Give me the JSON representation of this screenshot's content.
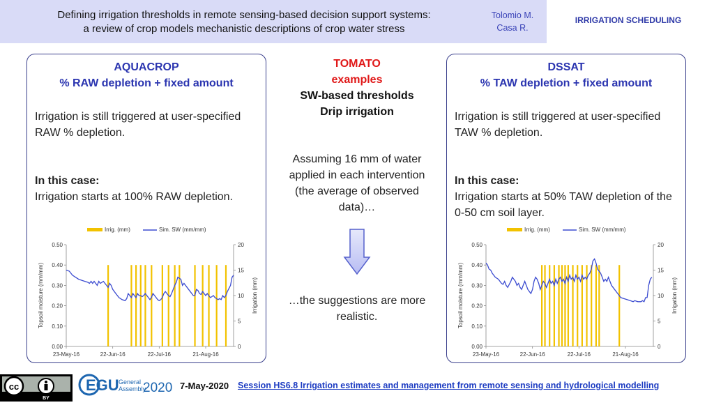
{
  "header": {
    "title_line1": "Defining irrigation thresholds in remote sensing-based decision support systems:",
    "title_line2": "a review of crop models mechanistic descriptions of crop water stress",
    "author1": "Tolomio M.",
    "author2": "Casa R.",
    "tag": "IRRIGATION SCHEDULING"
  },
  "left": {
    "title1": "AQUACROP",
    "title2": "% RAW depletion + fixed amount",
    "text1": "Irrigation is still triggered at user-specified RAW % depletion.",
    "case_label": "In this case:",
    "case_text": "Irrigation starts at 100% RAW depletion."
  },
  "right": {
    "title1": "DSSAT",
    "title2": "% TAW depletion + fixed amount",
    "text1": "Irrigation is still triggered at user-specified TAW % depletion.",
    "case_label": "In this case:",
    "case_text": "Irrigation starts at 50% TAW depletion of the 0-50 cm soil layer."
  },
  "center": {
    "crop": "TOMATO",
    "examples": "examples",
    "line1": "SW-based thresholds",
    "line2": "Drip irrigation",
    "assume": "Assuming 16 mm of water applied in each intervention (the average of observed data)…",
    "conclusion": "…the suggestions are more realistic."
  },
  "footer": {
    "cc_label": "BY",
    "egu_word1": "General",
    "egu_word2": "Assembly",
    "egu_year": "2020",
    "egu_letters": "EGU",
    "date": "7-May-2020",
    "session": "Session HS6.8   Irrigation estimates and management from remote sensing and hydrological modelling"
  },
  "colors": {
    "accent": "#2b35b0",
    "bar": "#f2c200",
    "line": "#3b4bd0",
    "red": "#e01818"
  },
  "chart_data": [
    {
      "type": "bar+line",
      "legend": [
        "Irrig. (mm)",
        "Sim. SW (mm/mm)"
      ],
      "ylabel": "Topsoil moisture (mm/mm)",
      "y2label": "Irrigation (mm)",
      "ylim": [
        0,
        0.5
      ],
      "y2lim": [
        0,
        20
      ],
      "yticks": [
        "0.00",
        "0.10",
        "0.20",
        "0.30",
        "0.40",
        "0.50"
      ],
      "y2ticks": [
        "0",
        "5",
        "10",
        "15",
        "20"
      ],
      "xrange_days": [
        "2016-05-23",
        "2016-09-08"
      ],
      "xticks": [
        "23-May-16",
        "22-Jun-16",
        "22-Jul-16",
        "21-Aug-16"
      ],
      "irrigation_dates": [
        "2016-06-19",
        "2016-07-04",
        "2016-07-07",
        "2016-07-10",
        "2016-07-13",
        "2016-07-17",
        "2016-07-24",
        "2016-07-28",
        "2016-08-01",
        "2016-08-04",
        "2016-08-14",
        "2016-08-19",
        "2016-08-23",
        "2016-08-28",
        "2016-09-03"
      ],
      "irrigation_mm": 16,
      "sw_series": [
        [
          0,
          0.375
        ],
        [
          2,
          0.37
        ],
        [
          4,
          0.35
        ],
        [
          6,
          0.34
        ],
        [
          8,
          0.33
        ],
        [
          10,
          0.325
        ],
        [
          12,
          0.32
        ],
        [
          14,
          0.315
        ],
        [
          15,
          0.31
        ],
        [
          16,
          0.32
        ],
        [
          17,
          0.31
        ],
        [
          18,
          0.32
        ],
        [
          19,
          0.31
        ],
        [
          20,
          0.3
        ],
        [
          21,
          0.32
        ],
        [
          22,
          0.31
        ],
        [
          24,
          0.32
        ],
        [
          26,
          0.3
        ],
        [
          27,
          0.29
        ],
        [
          28,
          0.31
        ],
        [
          29,
          0.3
        ],
        [
          30,
          0.28
        ],
        [
          32,
          0.26
        ],
        [
          34,
          0.24
        ],
        [
          36,
          0.23
        ],
        [
          38,
          0.225
        ],
        [
          39,
          0.235
        ],
        [
          40,
          0.26
        ],
        [
          41,
          0.25
        ],
        [
          42,
          0.24
        ],
        [
          43,
          0.26
        ],
        [
          44,
          0.25
        ],
        [
          45,
          0.24
        ],
        [
          46,
          0.26
        ],
        [
          47,
          0.25
        ],
        [
          48,
          0.25
        ],
        [
          49,
          0.245
        ],
        [
          50,
          0.25
        ],
        [
          51,
          0.26
        ],
        [
          52,
          0.25
        ],
        [
          53,
          0.24
        ],
        [
          54,
          0.23
        ],
        [
          55,
          0.24
        ],
        [
          56,
          0.26
        ],
        [
          57,
          0.25
        ],
        [
          58,
          0.24
        ],
        [
          59,
          0.23
        ],
        [
          60,
          0.225
        ],
        [
          61,
          0.23
        ],
        [
          62,
          0.24
        ],
        [
          63,
          0.26
        ],
        [
          64,
          0.27
        ],
        [
          65,
          0.26
        ],
        [
          66,
          0.25
        ],
        [
          67,
          0.245
        ],
        [
          68,
          0.26
        ],
        [
          70,
          0.3
        ],
        [
          71,
          0.315
        ],
        [
          72,
          0.34
        ],
        [
          74,
          0.33
        ],
        [
          75,
          0.3
        ],
        [
          76,
          0.31
        ],
        [
          77,
          0.3
        ],
        [
          78,
          0.29
        ],
        [
          80,
          0.27
        ],
        [
          82,
          0.25
        ],
        [
          83,
          0.25
        ],
        [
          84,
          0.28
        ],
        [
          85,
          0.275
        ],
        [
          86,
          0.26
        ],
        [
          87,
          0.255
        ],
        [
          88,
          0.27
        ],
        [
          89,
          0.26
        ],
        [
          90,
          0.25
        ],
        [
          91,
          0.26
        ],
        [
          92,
          0.25
        ],
        [
          93,
          0.24
        ],
        [
          94,
          0.245
        ],
        [
          95,
          0.25
        ],
        [
          96,
          0.24
        ],
        [
          98,
          0.23
        ],
        [
          99,
          0.235
        ],
        [
          100,
          0.23
        ],
        [
          101,
          0.25
        ],
        [
          102,
          0.24
        ],
        [
          103,
          0.25
        ],
        [
          104,
          0.27
        ],
        [
          106,
          0.3
        ],
        [
          107,
          0.34
        ],
        [
          108,
          0.35
        ]
      ]
    },
    {
      "type": "bar+line",
      "legend": [
        "Irrig. (mm)",
        "Sim. SW (mm/mm)"
      ],
      "ylabel": "Topsoil moisture (mm/mm)",
      "y2label": "Irrigation (mm)",
      "ylim": [
        0,
        0.5
      ],
      "y2lim": [
        0,
        20
      ],
      "yticks": [
        "0.00",
        "0.10",
        "0.20",
        "0.30",
        "0.40",
        "0.50"
      ],
      "y2ticks": [
        "0",
        "5",
        "10",
        "15",
        "20"
      ],
      "xrange_days": [
        "2016-05-23",
        "2016-09-08"
      ],
      "xticks": [
        "23-May-16",
        "22-Jun-16",
        "22-Jul-16",
        "21-Aug-16"
      ],
      "irrigation_dates": [
        "2016-06-28",
        "2016-06-30",
        "2016-07-03",
        "2016-07-06",
        "2016-07-09",
        "2016-07-11",
        "2016-07-13",
        "2016-07-15",
        "2016-07-18",
        "2016-07-21",
        "2016-07-24",
        "2016-07-27",
        "2016-07-30",
        "2016-08-02",
        "2016-08-04",
        "2016-08-17"
      ],
      "irrigation_mm": 16,
      "sw_series": [
        [
          0,
          0.41
        ],
        [
          1,
          0.4
        ],
        [
          2,
          0.38
        ],
        [
          3,
          0.375
        ],
        [
          4,
          0.36
        ],
        [
          6,
          0.34
        ],
        [
          8,
          0.33
        ],
        [
          10,
          0.31
        ],
        [
          11,
          0.305
        ],
        [
          12,
          0.32
        ],
        [
          13,
          0.3
        ],
        [
          14,
          0.29
        ],
        [
          16,
          0.32
        ],
        [
          17,
          0.34
        ],
        [
          18,
          0.33
        ],
        [
          19,
          0.32
        ],
        [
          20,
          0.3
        ],
        [
          21,
          0.31
        ],
        [
          22,
          0.29
        ],
        [
          23,
          0.28
        ],
        [
          24,
          0.3
        ],
        [
          25,
          0.32
        ],
        [
          26,
          0.3
        ],
        [
          27,
          0.28
        ],
        [
          28,
          0.27
        ],
        [
          29,
          0.26
        ],
        [
          30,
          0.28
        ],
        [
          31,
          0.32
        ],
        [
          32,
          0.34
        ],
        [
          33,
          0.33
        ],
        [
          34,
          0.31
        ],
        [
          35,
          0.28
        ],
        [
          36,
          0.3
        ],
        [
          37,
          0.32
        ],
        [
          38,
          0.31
        ],
        [
          39,
          0.29
        ],
        [
          40,
          0.31
        ],
        [
          41,
          0.33
        ],
        [
          42,
          0.31
        ],
        [
          43,
          0.32
        ],
        [
          44,
          0.3
        ],
        [
          45,
          0.33
        ],
        [
          46,
          0.31
        ],
        [
          47,
          0.33
        ],
        [
          48,
          0.34
        ],
        [
          49,
          0.32
        ],
        [
          50,
          0.33
        ],
        [
          51,
          0.31
        ],
        [
          52,
          0.34
        ],
        [
          53,
          0.32
        ],
        [
          54,
          0.35
        ],
        [
          55,
          0.33
        ],
        [
          56,
          0.34
        ],
        [
          57,
          0.32
        ],
        [
          58,
          0.35
        ],
        [
          59,
          0.33
        ],
        [
          60,
          0.34
        ],
        [
          61,
          0.32
        ],
        [
          62,
          0.35
        ],
        [
          63,
          0.33
        ],
        [
          64,
          0.34
        ],
        [
          65,
          0.33
        ],
        [
          66,
          0.35
        ],
        [
          67,
          0.36
        ],
        [
          68,
          0.38
        ],
        [
          69,
          0.42
        ],
        [
          70,
          0.43
        ],
        [
          71,
          0.41
        ],
        [
          72,
          0.38
        ],
        [
          73,
          0.37
        ],
        [
          74,
          0.36
        ],
        [
          75,
          0.34
        ],
        [
          76,
          0.32
        ],
        [
          77,
          0.33
        ],
        [
          78,
          0.32
        ],
        [
          79,
          0.34
        ],
        [
          80,
          0.32
        ],
        [
          81,
          0.3
        ],
        [
          83,
          0.28
        ],
        [
          85,
          0.26
        ],
        [
          87,
          0.24
        ],
        [
          89,
          0.235
        ],
        [
          91,
          0.23
        ],
        [
          93,
          0.225
        ],
        [
          95,
          0.22
        ],
        [
          96,
          0.225
        ],
        [
          98,
          0.22
        ],
        [
          100,
          0.22
        ],
        [
          101,
          0.225
        ],
        [
          102,
          0.22
        ],
        [
          103,
          0.24
        ],
        [
          104,
          0.24
        ],
        [
          105,
          0.3
        ],
        [
          106,
          0.33
        ],
        [
          107,
          0.34
        ]
      ]
    }
  ]
}
